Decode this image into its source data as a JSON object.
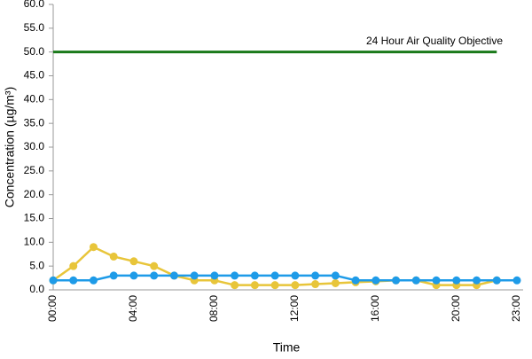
{
  "chart_data": {
    "type": "line",
    "x_label": "Time",
    "y_label": "Concentration (µg/m³)",
    "categories": [
      "00:00",
      null,
      null,
      null,
      "04:00",
      null,
      null,
      null,
      "08:00",
      null,
      null,
      null,
      "12:00",
      null,
      null,
      null,
      "16:00",
      null,
      null,
      null,
      "20:00",
      null,
      null,
      "23:00"
    ],
    "series": [
      {
        "color": "#1a7a1a",
        "marker": false,
        "values": [
          50,
          50,
          50,
          50,
          50,
          50,
          50,
          50,
          50,
          50,
          50,
          50,
          50,
          50,
          50,
          50,
          50,
          50,
          50,
          50,
          50,
          50,
          50,
          null
        ]
      },
      {
        "color": "#e8c53a",
        "marker": true,
        "values": [
          2,
          5,
          9,
          7,
          6,
          5,
          3,
          2,
          2,
          1,
          1,
          1,
          1,
          1.2,
          1.4,
          1.6,
          1.8,
          2,
          2,
          1,
          1,
          1,
          2,
          null
        ]
      },
      {
        "color": "#1e9be8",
        "marker": true,
        "values": [
          2,
          2,
          2,
          3,
          3,
          3,
          3,
          3,
          3,
          3,
          3,
          3,
          3,
          3,
          3,
          2,
          2,
          2,
          2,
          2,
          2,
          2,
          2,
          2
        ]
      }
    ],
    "annotation": "24 Hour Air Quality Objective",
    "ylim": [
      0,
      60
    ],
    "yticks": [
      {
        "value": 0,
        "label": "0.0"
      },
      {
        "value": 5,
        "label": "5.0"
      },
      {
        "value": 10,
        "label": "10.0"
      },
      {
        "value": 15,
        "label": "15.0"
      },
      {
        "value": 20,
        "label": "20.0"
      },
      {
        "value": 25,
        "label": "25.0"
      },
      {
        "value": 30,
        "label": "30.0"
      },
      {
        "value": 35,
        "label": "35.0"
      },
      {
        "value": 40,
        "label": "40.0"
      },
      {
        "value": 45,
        "label": "45.0"
      },
      {
        "value": 50,
        "label": "50.0"
      },
      {
        "value": 55,
        "label": "55.0"
      },
      {
        "value": 60,
        "label": "60.0"
      }
    ]
  }
}
